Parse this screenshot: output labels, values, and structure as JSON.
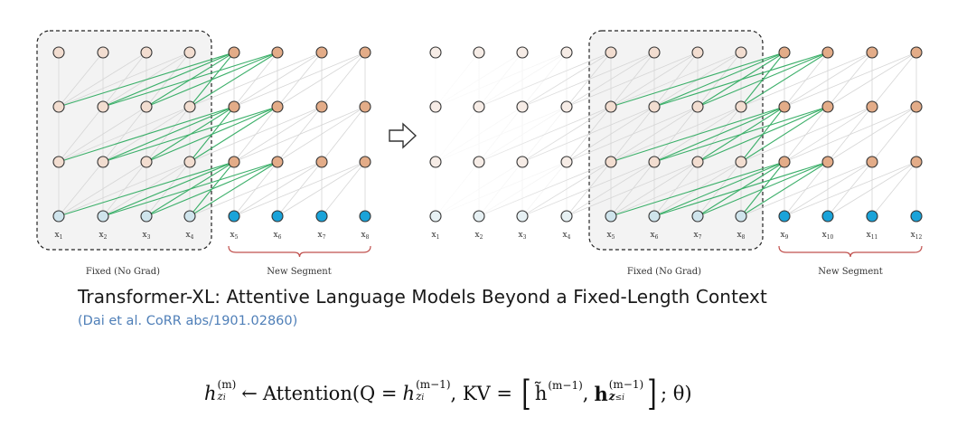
{
  "diagram": {
    "left_panel": {
      "fixed_label": "Fixed (No Grad)",
      "new_label": "New Segment",
      "tokens": [
        "x1",
        "x2",
        "x3",
        "x4",
        "x5",
        "x6",
        "x7",
        "x8"
      ]
    },
    "right_panel": {
      "fixed_label": "Fixed (No Grad)",
      "new_label": "New Segment",
      "tokens": [
        "x1",
        "x2",
        "x3",
        "x4",
        "x5",
        "x6",
        "x7",
        "x8",
        "x9",
        "x10",
        "x11",
        "x12"
      ]
    },
    "colors": {
      "input_new": "#1aa3d9",
      "input_cached": "#cfe4ec",
      "hidden_new": "#e3ac88",
      "hidden_cached": "#f2ddd0",
      "hidden_faded": "#f6ece6",
      "edge_green": "#3cb06a",
      "edge_gray": "#d6d6d6",
      "bracket": "#c0504d"
    }
  },
  "title": "Transformer-XL: Attentive Language Models Beyond a Fixed-Length Context",
  "citation": "(Dai et al. CoRR abs/1901.02860)",
  "formula": {
    "lhs": "h",
    "lhs_sup": "(m)",
    "lhs_sub": "z",
    "lhs_sub_i": "i",
    "arrow": "←",
    "func": "Attention(Q =",
    "q": "h",
    "q_sup": "(m−1)",
    "q_sub": "z",
    "q_sub_i": "i",
    "kv": ", KV =",
    "open": "[",
    "h_tilde": "h̃",
    "h_tilde_sup": "(m−1)",
    "comma": ",",
    "h_bold": "h",
    "h_bold_sup": "(m−1)",
    "h_bold_sub": "z",
    "h_bold_sub2": "≤i",
    "close": "]",
    "tail": "; θ)"
  }
}
